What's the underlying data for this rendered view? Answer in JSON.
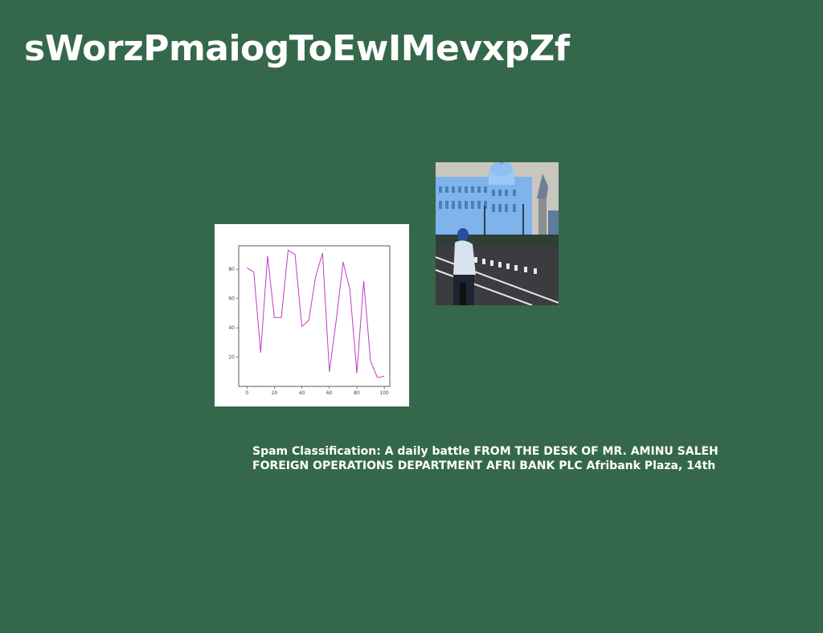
{
  "page": {
    "title": "sWorzPmaiogToEwIMevxpZf",
    "caption": "Spam Classification: A daily battle FROM THE DESK OF MR. AMINU SALEH FOREIGN OPERATIONS DEPARTMENT AFRI BANK PLC Afribank Plaza, 14th"
  },
  "colors": {
    "background": "#35684a",
    "line": "#c03cc6"
  },
  "photo": {
    "subject": "cyclist on street in front of domed neoclassical building"
  },
  "chart_data": {
    "type": "line",
    "title": "",
    "xlabel": "",
    "ylabel": "",
    "xlim": [
      -6,
      104
    ],
    "ylim": [
      0,
      96
    ],
    "xticks": [
      0,
      20,
      40,
      60,
      80,
      100
    ],
    "yticks": [
      20,
      40,
      60,
      80
    ],
    "grid": false,
    "series": [
      {
        "x": [
          0,
          5,
          10,
          15,
          20,
          25,
          30,
          35,
          40,
          45,
          50,
          55,
          60,
          65,
          70,
          75,
          80,
          85,
          90,
          95,
          100
        ],
        "values": [
          81,
          78,
          23,
          89,
          47,
          47,
          93,
          90,
          41,
          45,
          75,
          91,
          10,
          45,
          85,
          66,
          9,
          72,
          17,
          6,
          7
        ]
      }
    ]
  }
}
